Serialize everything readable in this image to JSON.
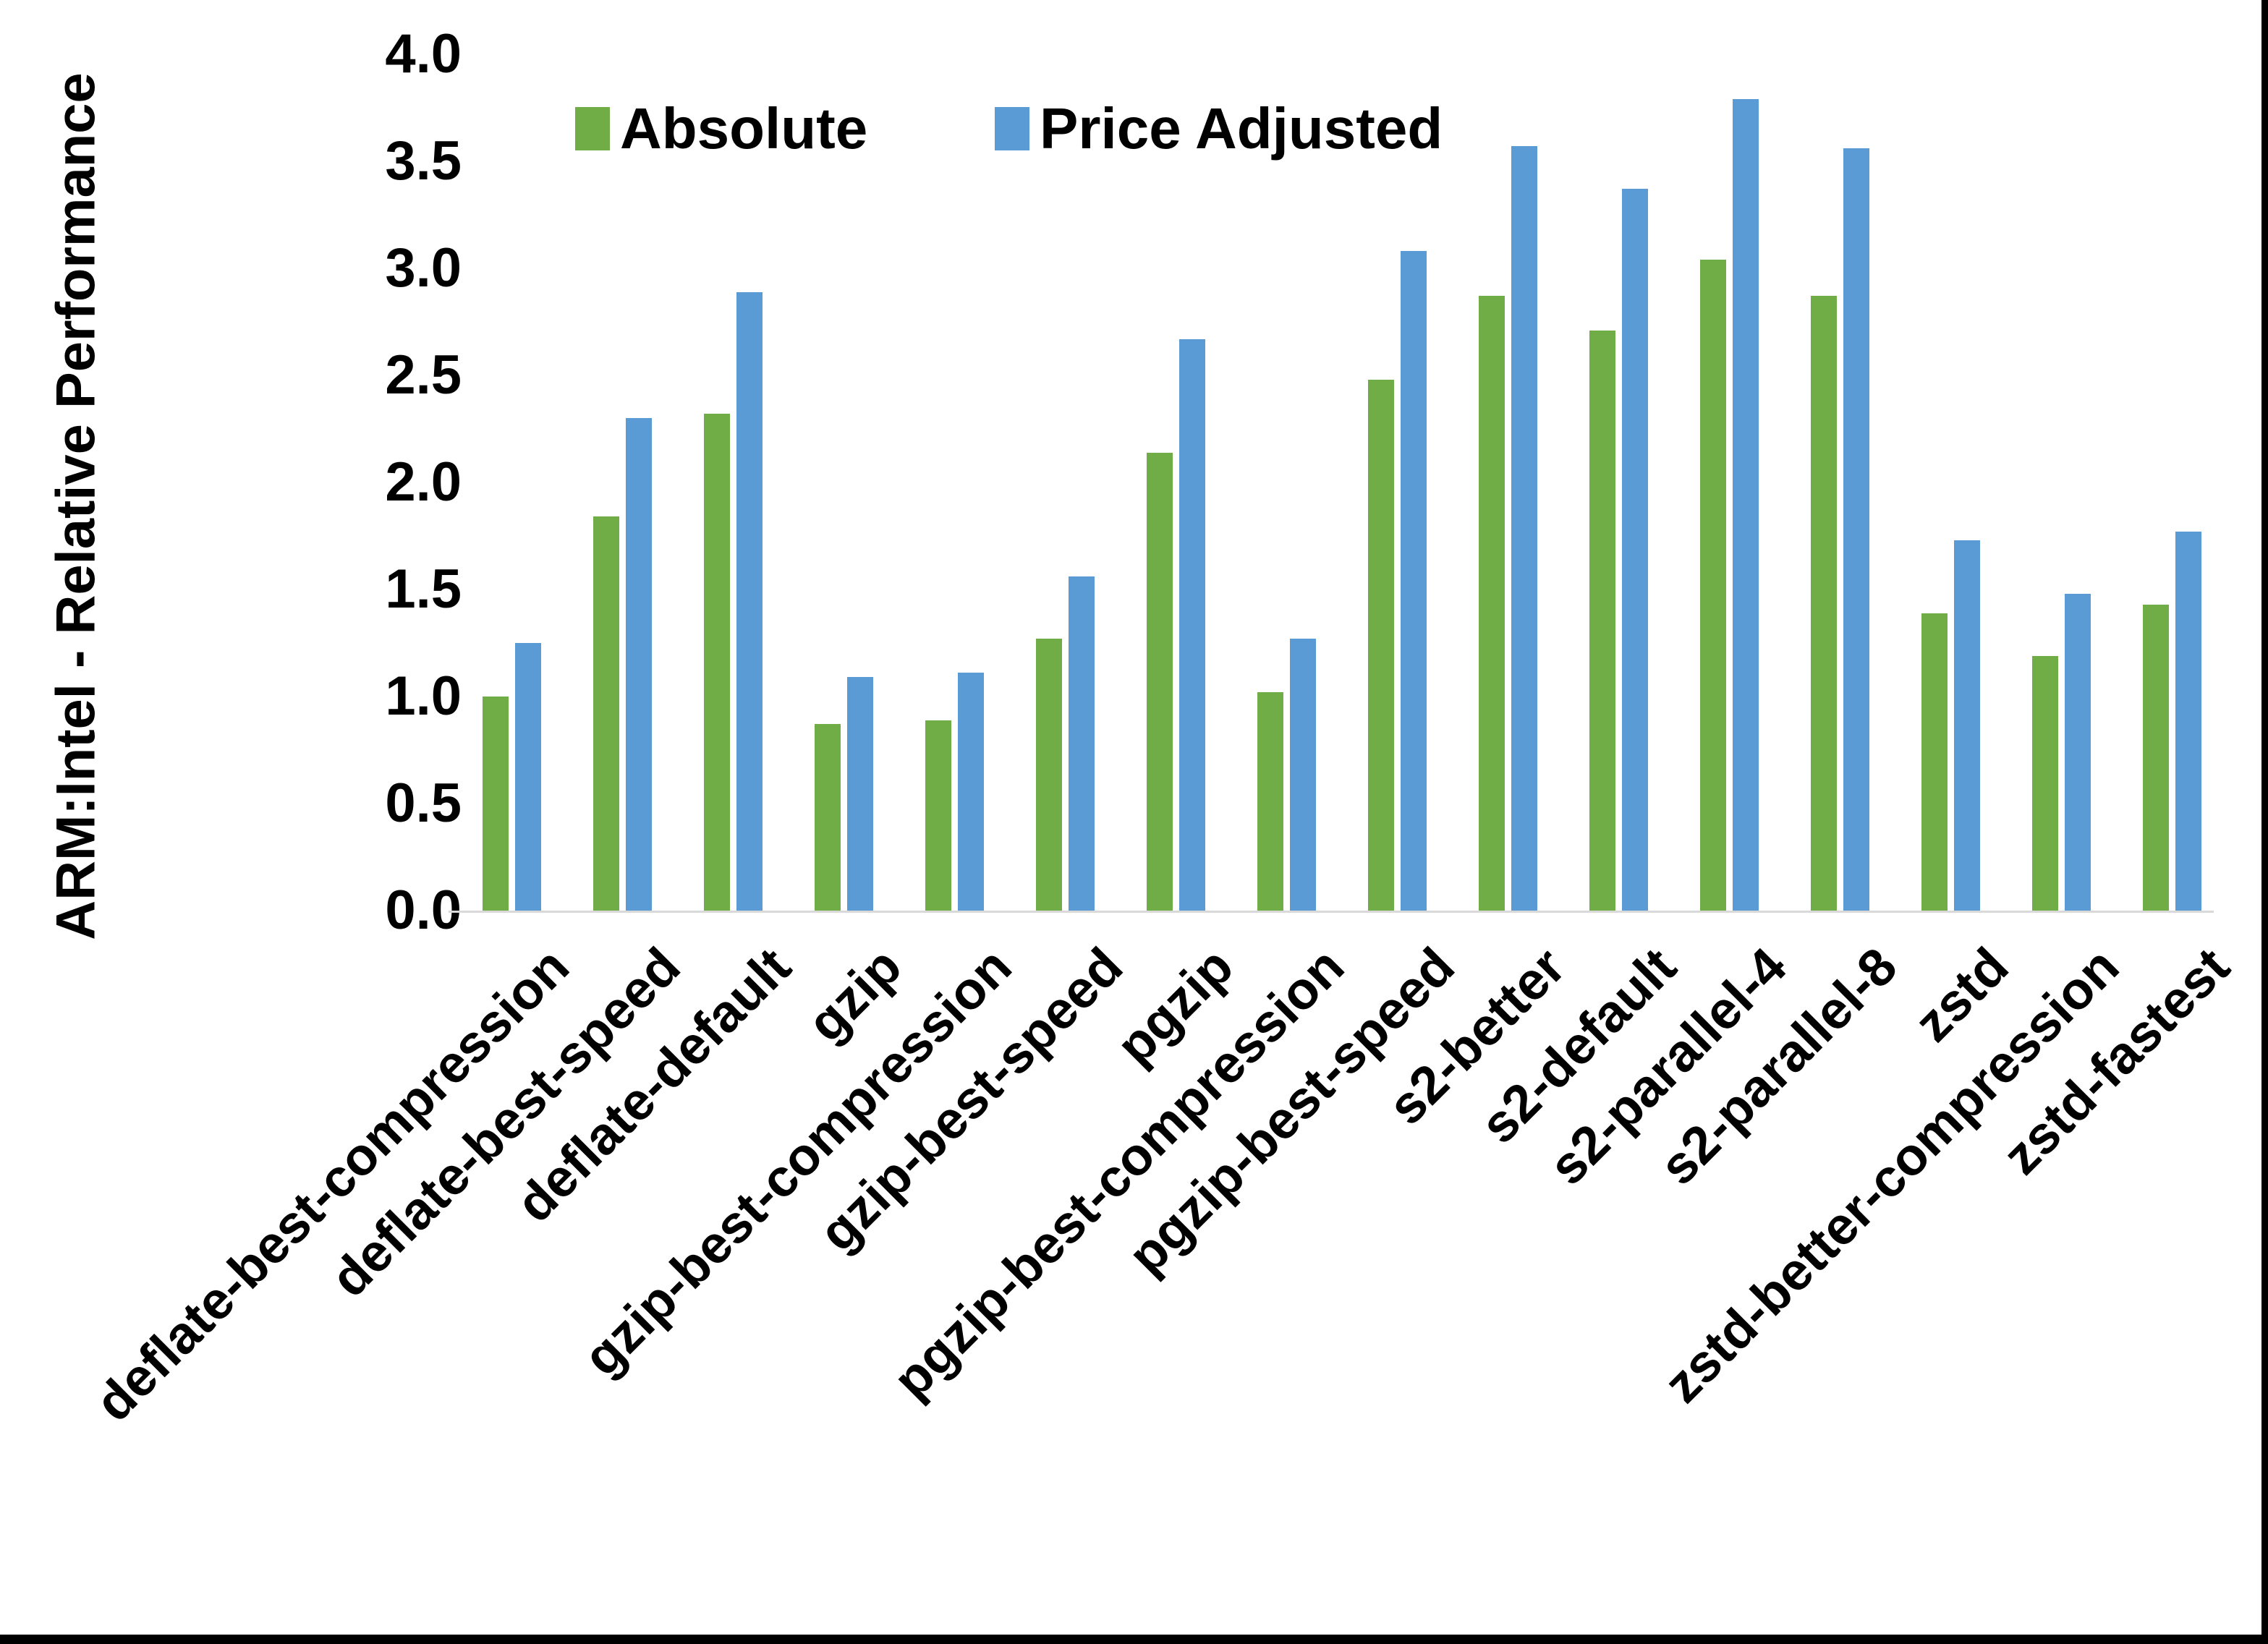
{
  "chart_data": {
    "type": "bar",
    "title": "",
    "xlabel": "",
    "ylabel": "ARM:Intel - Relative Performance",
    "ylim": [
      0.0,
      4.0
    ],
    "ytick_step": 0.5,
    "ytick_labels": [
      "0.0",
      "0.5",
      "1.0",
      "1.5",
      "2.0",
      "2.5",
      "3.0",
      "3.5",
      "4.0"
    ],
    "grid": false,
    "legend_position": "top-center",
    "categories": [
      "deflate-best-compression",
      "deflate-best-speed",
      "deflate-default",
      "gzip",
      "gzip-best-compression",
      "gzip-best-speed",
      "pgzip",
      "pgzip-best-compression",
      "pgzip-best-speed",
      "s2-better",
      "s2-default",
      "s2-parallel-4",
      "s2-parallel-8",
      "zstd",
      "zstd-better-compression",
      "zstd-fastest"
    ],
    "series": [
      {
        "name": "Absolute",
        "color": "#70AD47",
        "values": [
          1.0,
          1.84,
          2.32,
          0.87,
          0.89,
          1.27,
          2.14,
          1.02,
          2.48,
          2.87,
          2.71,
          3.04,
          2.87,
          1.39,
          1.19,
          1.43
        ]
      },
      {
        "name": "Price Adjusted",
        "color": "#5B9BD5",
        "values": [
          1.25,
          2.3,
          2.89,
          1.09,
          1.11,
          1.56,
          2.67,
          1.27,
          3.08,
          3.57,
          3.37,
          3.79,
          3.56,
          1.73,
          1.48,
          1.77
        ]
      }
    ],
    "axis_line_color": "#D9D9D9",
    "text_color": "#000000"
  }
}
